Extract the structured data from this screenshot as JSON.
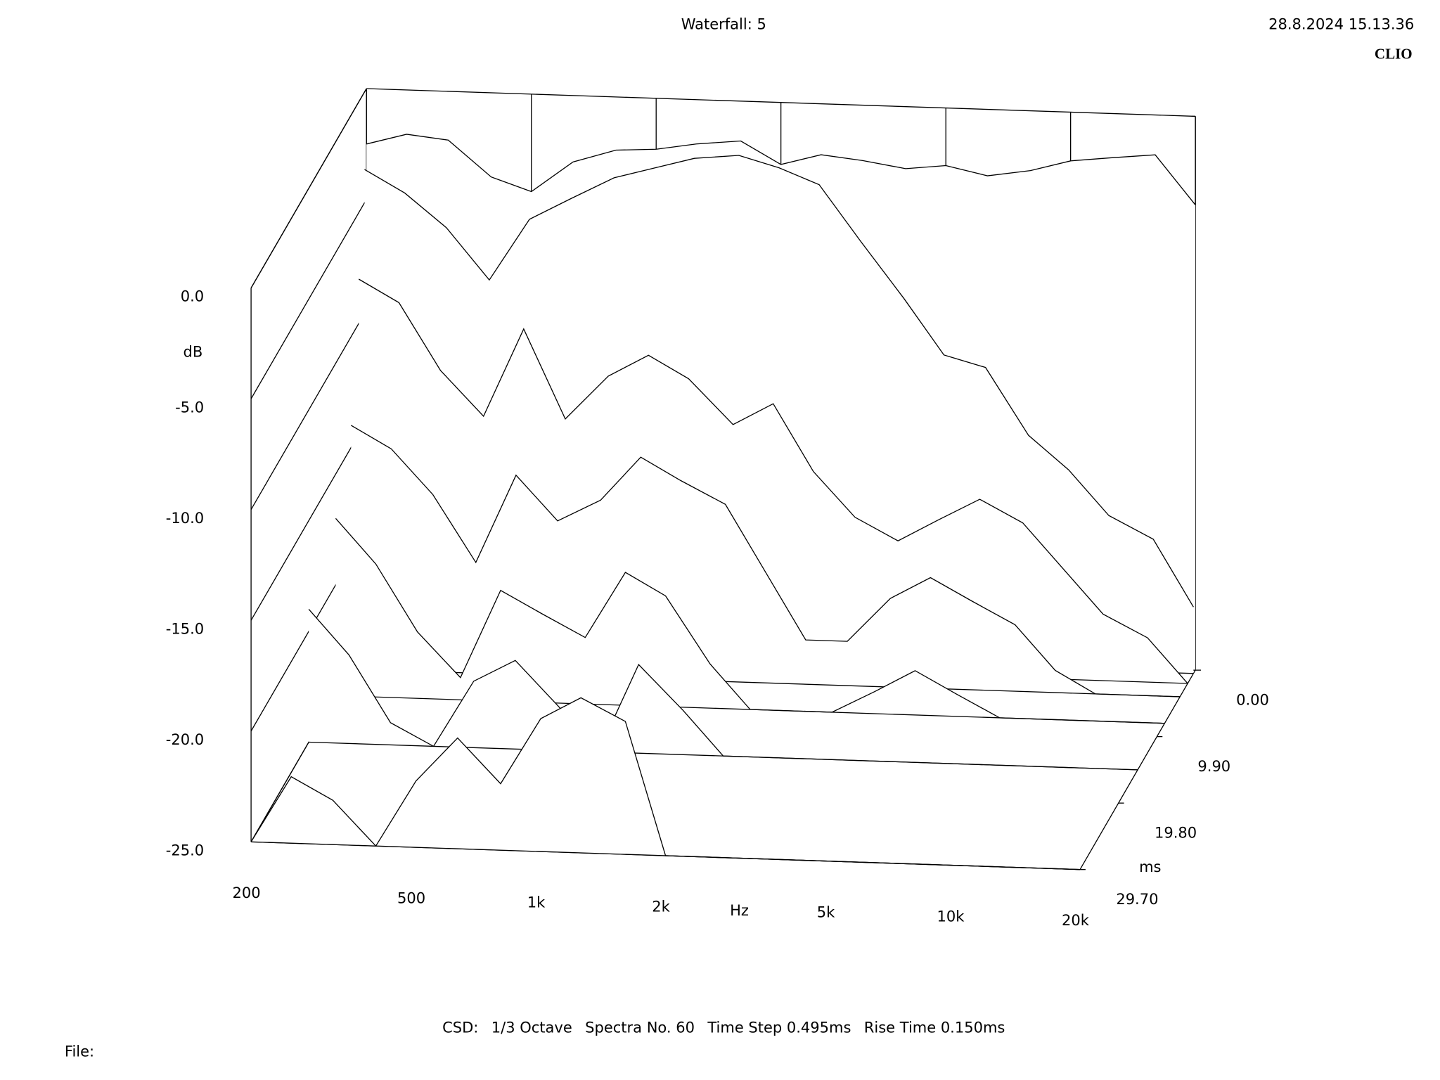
{
  "header": {
    "date": "28.8.2024 15.13.36",
    "brand": "CLIO"
  },
  "footer": {
    "settings": [
      "CSD:",
      "1/3 Octave",
      "Spectra No. 60",
      "Time Step 0.495ms",
      "Rise Time 0.150ms"
    ],
    "file": "File:"
  },
  "chart_data": {
    "type": "waterfall",
    "title": "Waterfall: 5",
    "xlabel": "Hz",
    "ylabel": "dB",
    "zlabel": "ms",
    "xscale": "log",
    "x": [
      200,
      250,
      315,
      400,
      500,
      630,
      800,
      1000,
      1250,
      1600,
      2000,
      2500,
      3150,
      4000,
      5000,
      6300,
      8000,
      10000,
      12500,
      16000,
      20000
    ],
    "xlim": [
      200,
      20000
    ],
    "xticks": [
      200,
      500,
      {
        "value": 1000,
        "label": "1k"
      },
      {
        "value": 2000,
        "label": "2k"
      },
      {
        "value": 5000,
        "label": "5k"
      },
      {
        "value": 10000,
        "label": "10k"
      },
      {
        "value": 20000,
        "label": "20k"
      }
    ],
    "ylim": [
      -25,
      0
    ],
    "yticks": [
      {
        "value": 0,
        "label": "0.0"
      },
      {
        "value": -5,
        "label": "-5.0"
      },
      {
        "value": -10,
        "label": "-10.0"
      },
      {
        "value": -15,
        "label": "-15.0"
      },
      {
        "value": -20,
        "label": "-20.0"
      },
      {
        "value": -25,
        "label": "-25.0"
      }
    ],
    "zlim": [
      0,
      29.7
    ],
    "zticks": [
      {
        "value": 0,
        "label": "0.00"
      },
      {
        "value": 9.9,
        "label": "9.90"
      },
      {
        "value": 19.8,
        "label": "19.80"
      },
      {
        "value": 29.7,
        "label": "29.70"
      }
    ],
    "color": "#000000",
    "spectra": [
      {
        "time": 0,
        "values": [
          -2.5,
          -2.0,
          -2.2,
          -3.8,
          -4.4,
          -3.0,
          -2.4,
          -2.3,
          -2.0,
          -1.8,
          -2.8,
          -2.3,
          -2.5,
          -2.8,
          -2.6,
          -3.0,
          -2.7,
          -2.2,
          -2.0,
          -1.8,
          -4.0
        ]
      },
      {
        "time": 0.495,
        "values": [
          -3.5,
          -4.5,
          -6.0,
          -8.3,
          -5.5,
          -4.5,
          -3.5,
          -3.0,
          -2.5,
          -2.3,
          -2.8,
          -3.5,
          -6.0,
          -8.5,
          -11.0,
          -11.5,
          -14.5,
          -16.0,
          -18.0,
          -19.0,
          -22.0
        ]
      },
      {
        "time": 1.98,
        "values": [
          -8,
          -9,
          -12,
          -14,
          -10,
          -14,
          -12,
          -11,
          -12,
          -14,
          -13,
          -16,
          -18,
          -19,
          -18,
          -17,
          -18,
          -20,
          -22,
          -23,
          -25
        ]
      },
      {
        "time": 3.96,
        "values": [
          -14,
          -15,
          -17,
          -20,
          -16,
          -18,
          -17,
          -15,
          -16,
          -17,
          -20,
          -23,
          -23,
          -21,
          -20,
          -21,
          -22,
          -24,
          -25,
          -25,
          -25
        ]
      },
      {
        "time": 7.92,
        "values": [
          -17,
          -19,
          -22,
          -24,
          -20,
          -21,
          -22,
          -19,
          -20,
          -23,
          -25,
          -25,
          -25,
          -24,
          -23,
          -24,
          -25,
          -25,
          -25,
          -25,
          -25
        ]
      },
      {
        "time": 14.85,
        "values": [
          -19,
          -21,
          -24,
          -25,
          -22,
          -21,
          -23,
          -25,
          -21,
          -23,
          -25,
          -25,
          -25,
          -25,
          -25,
          -25,
          -25,
          -25,
          -25,
          -25,
          -25
        ]
      },
      {
        "time": 29.7,
        "values": [
          -25,
          -22,
          -23,
          -25,
          -22,
          -20,
          -22,
          -19,
          -18,
          -19,
          -25,
          -25,
          -25,
          -25,
          -25,
          -25,
          -25,
          -25,
          -25,
          -25,
          -25
        ]
      }
    ]
  }
}
